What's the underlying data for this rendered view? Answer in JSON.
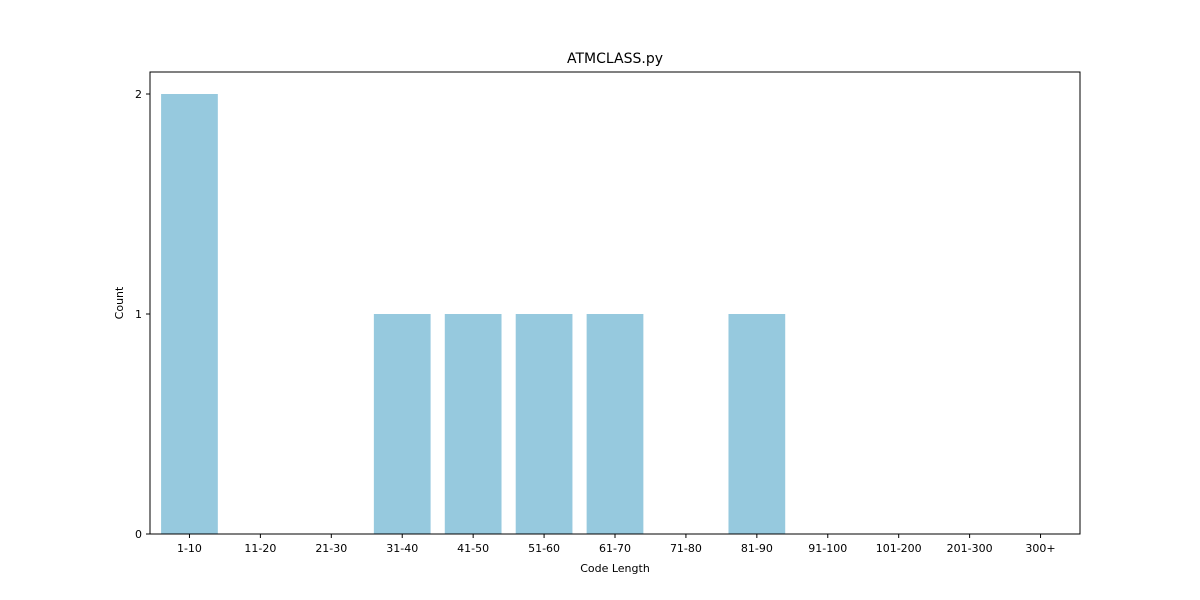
{
  "chart_data": {
    "type": "bar",
    "title": "ATMCLASS.py",
    "xlabel": "Code Length",
    "ylabel": "Count",
    "categories": [
      "1-10",
      "11-20",
      "21-30",
      "31-40",
      "41-50",
      "51-60",
      "61-70",
      "71-80",
      "81-90",
      "91-100",
      "101-200",
      "201-300",
      "300+"
    ],
    "values": [
      2,
      0,
      0,
      1,
      1,
      1,
      1,
      0,
      1,
      0,
      0,
      0,
      0
    ],
    "ylim": [
      0,
      2.1
    ],
    "yticks": [
      0,
      1,
      2
    ],
    "grid": false,
    "colors": {
      "bar": "#96c9de",
      "axis": "#000000"
    }
  }
}
